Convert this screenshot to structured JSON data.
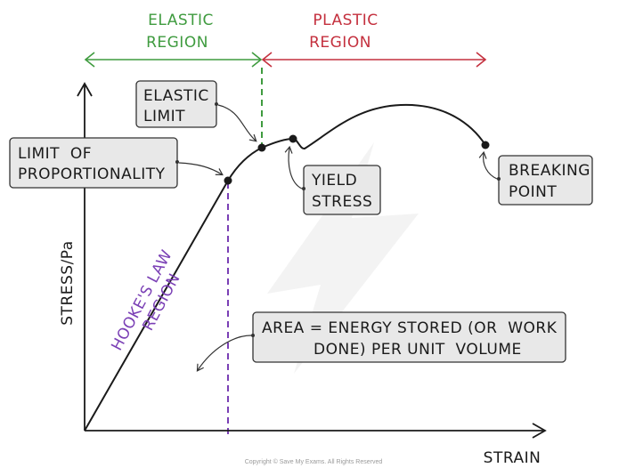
{
  "regions": {
    "elastic": [
      "ELASTIC",
      "REGION"
    ],
    "plastic": [
      "PLASTIC",
      "REGION"
    ]
  },
  "axes": {
    "y_label": "STRESS/Pa",
    "x_label": "STRAIN"
  },
  "labels": {
    "elastic_limit": [
      "ELASTIC",
      "LIMIT"
    ],
    "limit_of_proportionality": [
      "LIMIT  OF",
      "PROPORTIONALITY"
    ],
    "yield_stress": [
      "YIELD",
      "STRESS"
    ],
    "breaking_point": [
      "BREAKING",
      "POINT"
    ],
    "hookes_law": [
      "HOOKE'S LAW",
      "REGION"
    ],
    "area": [
      "AREA = ENERGY STORED (OR  WORK",
      "DONE) PER UNIT  VOLUME"
    ]
  },
  "copyright": "Copyright © Save My Exams. All Rights Reserved",
  "colors": {
    "elastic": "#3f9b3f",
    "plastic": "#c4303e",
    "hookes": "#7a3fb5",
    "box_fill": "#e8e8e8",
    "ink": "#1a1a1a"
  }
}
